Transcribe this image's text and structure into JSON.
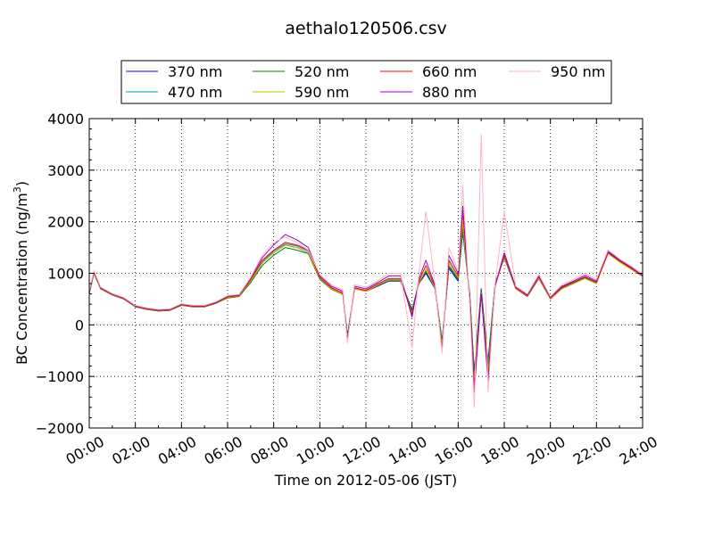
{
  "chart_data": {
    "type": "line",
    "title": "aethalo120506.csv",
    "xlabel": "Time on 2012-05-06 (JST)",
    "ylabel": "BC Concentration (ng/m",
    "ylabel_sup": "3",
    "ylabel_tail": ")",
    "ylim": [
      -2000,
      4000
    ],
    "xlim": [
      0,
      24
    ],
    "yticks": [
      -2000,
      -1000,
      0,
      1000,
      2000,
      3000,
      4000
    ],
    "ytick_labels": [
      "−2000",
      "−1000",
      "0",
      "1000",
      "2000",
      "3000",
      "4000"
    ],
    "xticks": [
      0,
      2,
      4,
      6,
      8,
      10,
      12,
      14,
      16,
      18,
      20,
      22,
      24
    ],
    "xtick_labels": [
      "00:00",
      "02:00",
      "04:00",
      "06:00",
      "08:00",
      "10:00",
      "12:00",
      "14:00",
      "16:00",
      "18:00",
      "20:00",
      "22:00",
      "24:00"
    ],
    "grid": true,
    "legend_position": "top",
    "x": [
      0,
      0.2,
      0.5,
      1,
      1.5,
      2,
      2.5,
      3,
      3.5,
      4,
      4.5,
      5,
      5.5,
      6,
      6.5,
      7,
      7.5,
      8,
      8.5,
      9,
      9.5,
      10,
      10.5,
      11,
      11.2,
      11.5,
      12,
      12.5,
      13,
      13.5,
      14,
      14.3,
      14.6,
      15,
      15.3,
      15.6,
      16,
      16.2,
      16.5,
      16.7,
      17,
      17.3,
      17.6,
      18,
      18.5,
      19,
      19.5,
      20,
      20.5,
      21,
      21.5,
      22,
      22.5,
      23,
      23.5,
      24
    ],
    "series": [
      {
        "name": "370 nm",
        "color": "#0000ff",
        "values": [
          600,
          1000,
          700,
          580,
          500,
          350,
          300,
          270,
          280,
          380,
          350,
          350,
          420,
          530,
          560,
          850,
          1200,
          1400,
          1550,
          1500,
          1400,
          900,
          700,
          600,
          -200,
          700,
          650,
          750,
          850,
          850,
          300,
          800,
          1000,
          700,
          -300,
          1100,
          850,
          1800,
          600,
          -900,
          700,
          -700,
          800,
          1300,
          700,
          550,
          900,
          500,
          700,
          800,
          900,
          800,
          1450,
          1250,
          1100,
          950
        ]
      },
      {
        "name": "470 nm",
        "color": "#00a0a0",
        "values": [
          620,
          1020,
          710,
          590,
          510,
          360,
          310,
          280,
          290,
          390,
          360,
          360,
          430,
          540,
          570,
          870,
          1220,
          1430,
          1570,
          1530,
          1430,
          920,
          720,
          620,
          -250,
          720,
          670,
          780,
          880,
          880,
          250,
          830,
          1050,
          730,
          -350,
          1150,
          900,
          1900,
          550,
          -1000,
          650,
          -800,
          780,
          1320,
          710,
          560,
          920,
          510,
          720,
          820,
          920,
          820,
          1430,
          1240,
          1090,
          950
        ]
      },
      {
        "name": "520 nm",
        "color": "#008000",
        "values": [
          600,
          1000,
          700,
          580,
          500,
          350,
          300,
          270,
          280,
          380,
          350,
          350,
          420,
          520,
          550,
          820,
          1150,
          1350,
          1500,
          1450,
          1380,
          880,
          690,
          590,
          -230,
          710,
          660,
          760,
          860,
          860,
          280,
          820,
          1030,
          720,
          -320,
          1130,
          880,
          1850,
          600,
          -950,
          680,
          -750,
          790,
          1310,
          700,
          550,
          900,
          500,
          710,
          810,
          910,
          810,
          1400,
          1220,
          1080,
          940
        ]
      },
      {
        "name": "590 nm",
        "color": "#c0c000",
        "values": [
          610,
          1010,
          705,
          585,
          505,
          355,
          305,
          275,
          285,
          385,
          355,
          355,
          425,
          530,
          560,
          850,
          1200,
          1400,
          1550,
          1500,
          1400,
          900,
          700,
          600,
          -280,
          700,
          650,
          770,
          870,
          870,
          220,
          810,
          1080,
          710,
          -380,
          1200,
          920,
          2000,
          500,
          -1100,
          620,
          -900,
          760,
          1330,
          700,
          560,
          910,
          500,
          700,
          800,
          900,
          800,
          1380,
          1220,
          1080,
          940
        ]
      },
      {
        "name": "660 nm",
        "color": "#ff0000",
        "values": [
          620,
          1020,
          710,
          590,
          510,
          360,
          310,
          280,
          290,
          390,
          360,
          360,
          430,
          540,
          570,
          880,
          1250,
          1450,
          1600,
          1550,
          1450,
          920,
          720,
          620,
          -300,
          720,
          670,
          790,
          900,
          900,
          200,
          850,
          1150,
          740,
          -450,
          1250,
          950,
          2200,
          500,
          -1200,
          600,
          -1000,
          750,
          1350,
          720,
          570,
          930,
          520,
          730,
          830,
          930,
          830,
          1400,
          1240,
          1100,
          950
        ]
      },
      {
        "name": "880 nm",
        "color": "#a000c0",
        "values": [
          640,
          1040,
          720,
          600,
          520,
          370,
          320,
          290,
          300,
          400,
          370,
          370,
          440,
          560,
          580,
          900,
          1300,
          1550,
          1750,
          1650,
          1500,
          950,
          750,
          650,
          -320,
          750,
          700,
          820,
          950,
          950,
          150,
          900,
          1250,
          760,
          -500,
          1350,
          1000,
          2300,
          450,
          -1300,
          600,
          -1100,
          750,
          1400,
          730,
          580,
          950,
          530,
          750,
          850,
          960,
          850,
          1420,
          1260,
          1120,
          960
        ]
      },
      {
        "name": "950 nm",
        "color": "#ffb6c1",
        "values": [
          650,
          1050,
          730,
          610,
          530,
          380,
          330,
          300,
          310,
          410,
          380,
          380,
          450,
          570,
          590,
          920,
          1350,
          1600,
          1700,
          1600,
          1450,
          980,
          780,
          680,
          -350,
          780,
          730,
          850,
          1000,
          1000,
          -450,
          1000,
          2200,
          780,
          -550,
          1500,
          1050,
          2700,
          400,
          -1600,
          3700,
          -1300,
          800,
          2200,
          750,
          600,
          980,
          550,
          780,
          880,
          1000,
          880,
          1450,
          1280,
          1140,
          980
        ]
      }
    ]
  }
}
